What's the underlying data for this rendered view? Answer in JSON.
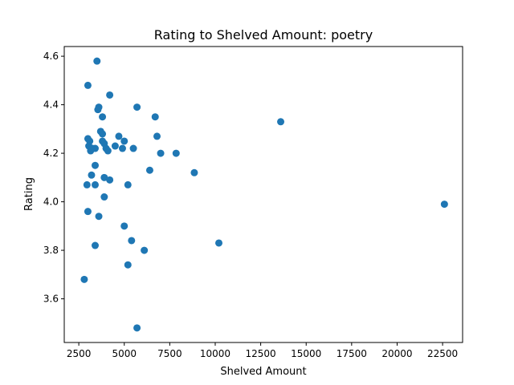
{
  "chart_data": {
    "type": "scatter",
    "title": "Rating to Shelved Amount: poetry",
    "xlabel": "Shelved Amount",
    "ylabel": "Rating",
    "xlim": [
      1700,
      23600
    ],
    "ylim": [
      3.42,
      4.64
    ],
    "xticks": [
      2500,
      5000,
      7500,
      10000,
      12500,
      15000,
      17500,
      20000,
      22500
    ],
    "yticks": [
      3.6,
      3.8,
      4.0,
      4.2,
      4.4,
      4.6
    ],
    "xtick_labels": [
      "2500",
      "5000",
      "7500",
      "10000",
      "12500",
      "15000",
      "17500",
      "20000",
      "22500"
    ],
    "ytick_labels": [
      "3.6",
      "3.8",
      "4.0",
      "4.2",
      "4.4",
      "4.6"
    ],
    "grid": false,
    "marker_color": "#1f77b4",
    "series": [
      {
        "points": [
          [
            3500,
            4.58
          ],
          [
            3000,
            4.48
          ],
          [
            4200,
            4.44
          ],
          [
            3600,
            4.39
          ],
          [
            3550,
            4.38
          ],
          [
            5700,
            4.39
          ],
          [
            6700,
            4.35
          ],
          [
            3800,
            4.35
          ],
          [
            3700,
            4.29
          ],
          [
            3800,
            4.28
          ],
          [
            3000,
            4.26
          ],
          [
            3100,
            4.25
          ],
          [
            3800,
            4.25
          ],
          [
            3900,
            4.24
          ],
          [
            3050,
            4.23
          ],
          [
            3400,
            4.22
          ],
          [
            3150,
            4.21
          ],
          [
            3250,
            4.22
          ],
          [
            4000,
            4.22
          ],
          [
            4100,
            4.21
          ],
          [
            4500,
            4.23
          ],
          [
            4700,
            4.27
          ],
          [
            4900,
            4.22
          ],
          [
            5000,
            4.25
          ],
          [
            5500,
            4.22
          ],
          [
            6800,
            4.27
          ],
          [
            7000,
            4.2
          ],
          [
            7850,
            4.2
          ],
          [
            3400,
            4.15
          ],
          [
            3200,
            4.11
          ],
          [
            3900,
            4.1
          ],
          [
            4200,
            4.09
          ],
          [
            6400,
            4.13
          ],
          [
            8850,
            4.12
          ],
          [
            2950,
            4.07
          ],
          [
            3400,
            4.07
          ],
          [
            5200,
            4.07
          ],
          [
            3900,
            4.02
          ],
          [
            3000,
            3.96
          ],
          [
            3600,
            3.94
          ],
          [
            5000,
            3.9
          ],
          [
            5400,
            3.84
          ],
          [
            10200,
            3.83
          ],
          [
            3400,
            3.82
          ],
          [
            6100,
            3.8
          ],
          [
            5200,
            3.74
          ],
          [
            2800,
            3.68
          ],
          [
            5700,
            3.48
          ],
          [
            13600,
            4.33
          ],
          [
            22600,
            3.99
          ]
        ]
      }
    ]
  }
}
